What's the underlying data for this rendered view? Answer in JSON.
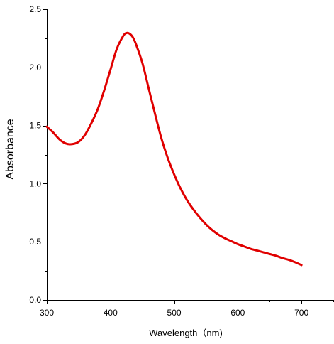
{
  "chart_data": {
    "type": "line",
    "title": "",
    "xlabel": "Wavelength（nm)",
    "ylabel": "Absorbance",
    "xlim": [
      300,
      750
    ],
    "ylim": [
      0.0,
      2.5
    ],
    "x_ticks": [
      300,
      400,
      500,
      600,
      700
    ],
    "x_tick_labels": [
      "300",
      "400",
      "500",
      "600",
      "700"
    ],
    "y_ticks": [
      0.0,
      0.5,
      1.0,
      1.5,
      2.0,
      2.5
    ],
    "y_tick_labels": [
      "0.0",
      "0.5",
      "1.0",
      "1.5",
      "2.0",
      "2.5"
    ],
    "grid": false,
    "legend": "none",
    "series": [
      {
        "color": "#e00000",
        "x": [
          300,
          310,
          320,
          330,
          340,
          350,
          360,
          370,
          380,
          390,
          400,
          410,
          420,
          425,
          430,
          435,
          440,
          450,
          460,
          470,
          480,
          490,
          500,
          510,
          520,
          530,
          540,
          550,
          560,
          570,
          580,
          590,
          600,
          610,
          620,
          630,
          640,
          650,
          660,
          670,
          680,
          690,
          700
        ],
        "y": [
          1.49,
          1.44,
          1.38,
          1.345,
          1.34,
          1.36,
          1.42,
          1.52,
          1.64,
          1.8,
          1.98,
          2.16,
          2.27,
          2.295,
          2.29,
          2.26,
          2.2,
          2.04,
          1.82,
          1.6,
          1.39,
          1.22,
          1.08,
          0.96,
          0.86,
          0.78,
          0.71,
          0.65,
          0.6,
          0.56,
          0.53,
          0.505,
          0.48,
          0.46,
          0.44,
          0.425,
          0.41,
          0.395,
          0.38,
          0.36,
          0.345,
          0.325,
          0.3
        ]
      }
    ]
  }
}
